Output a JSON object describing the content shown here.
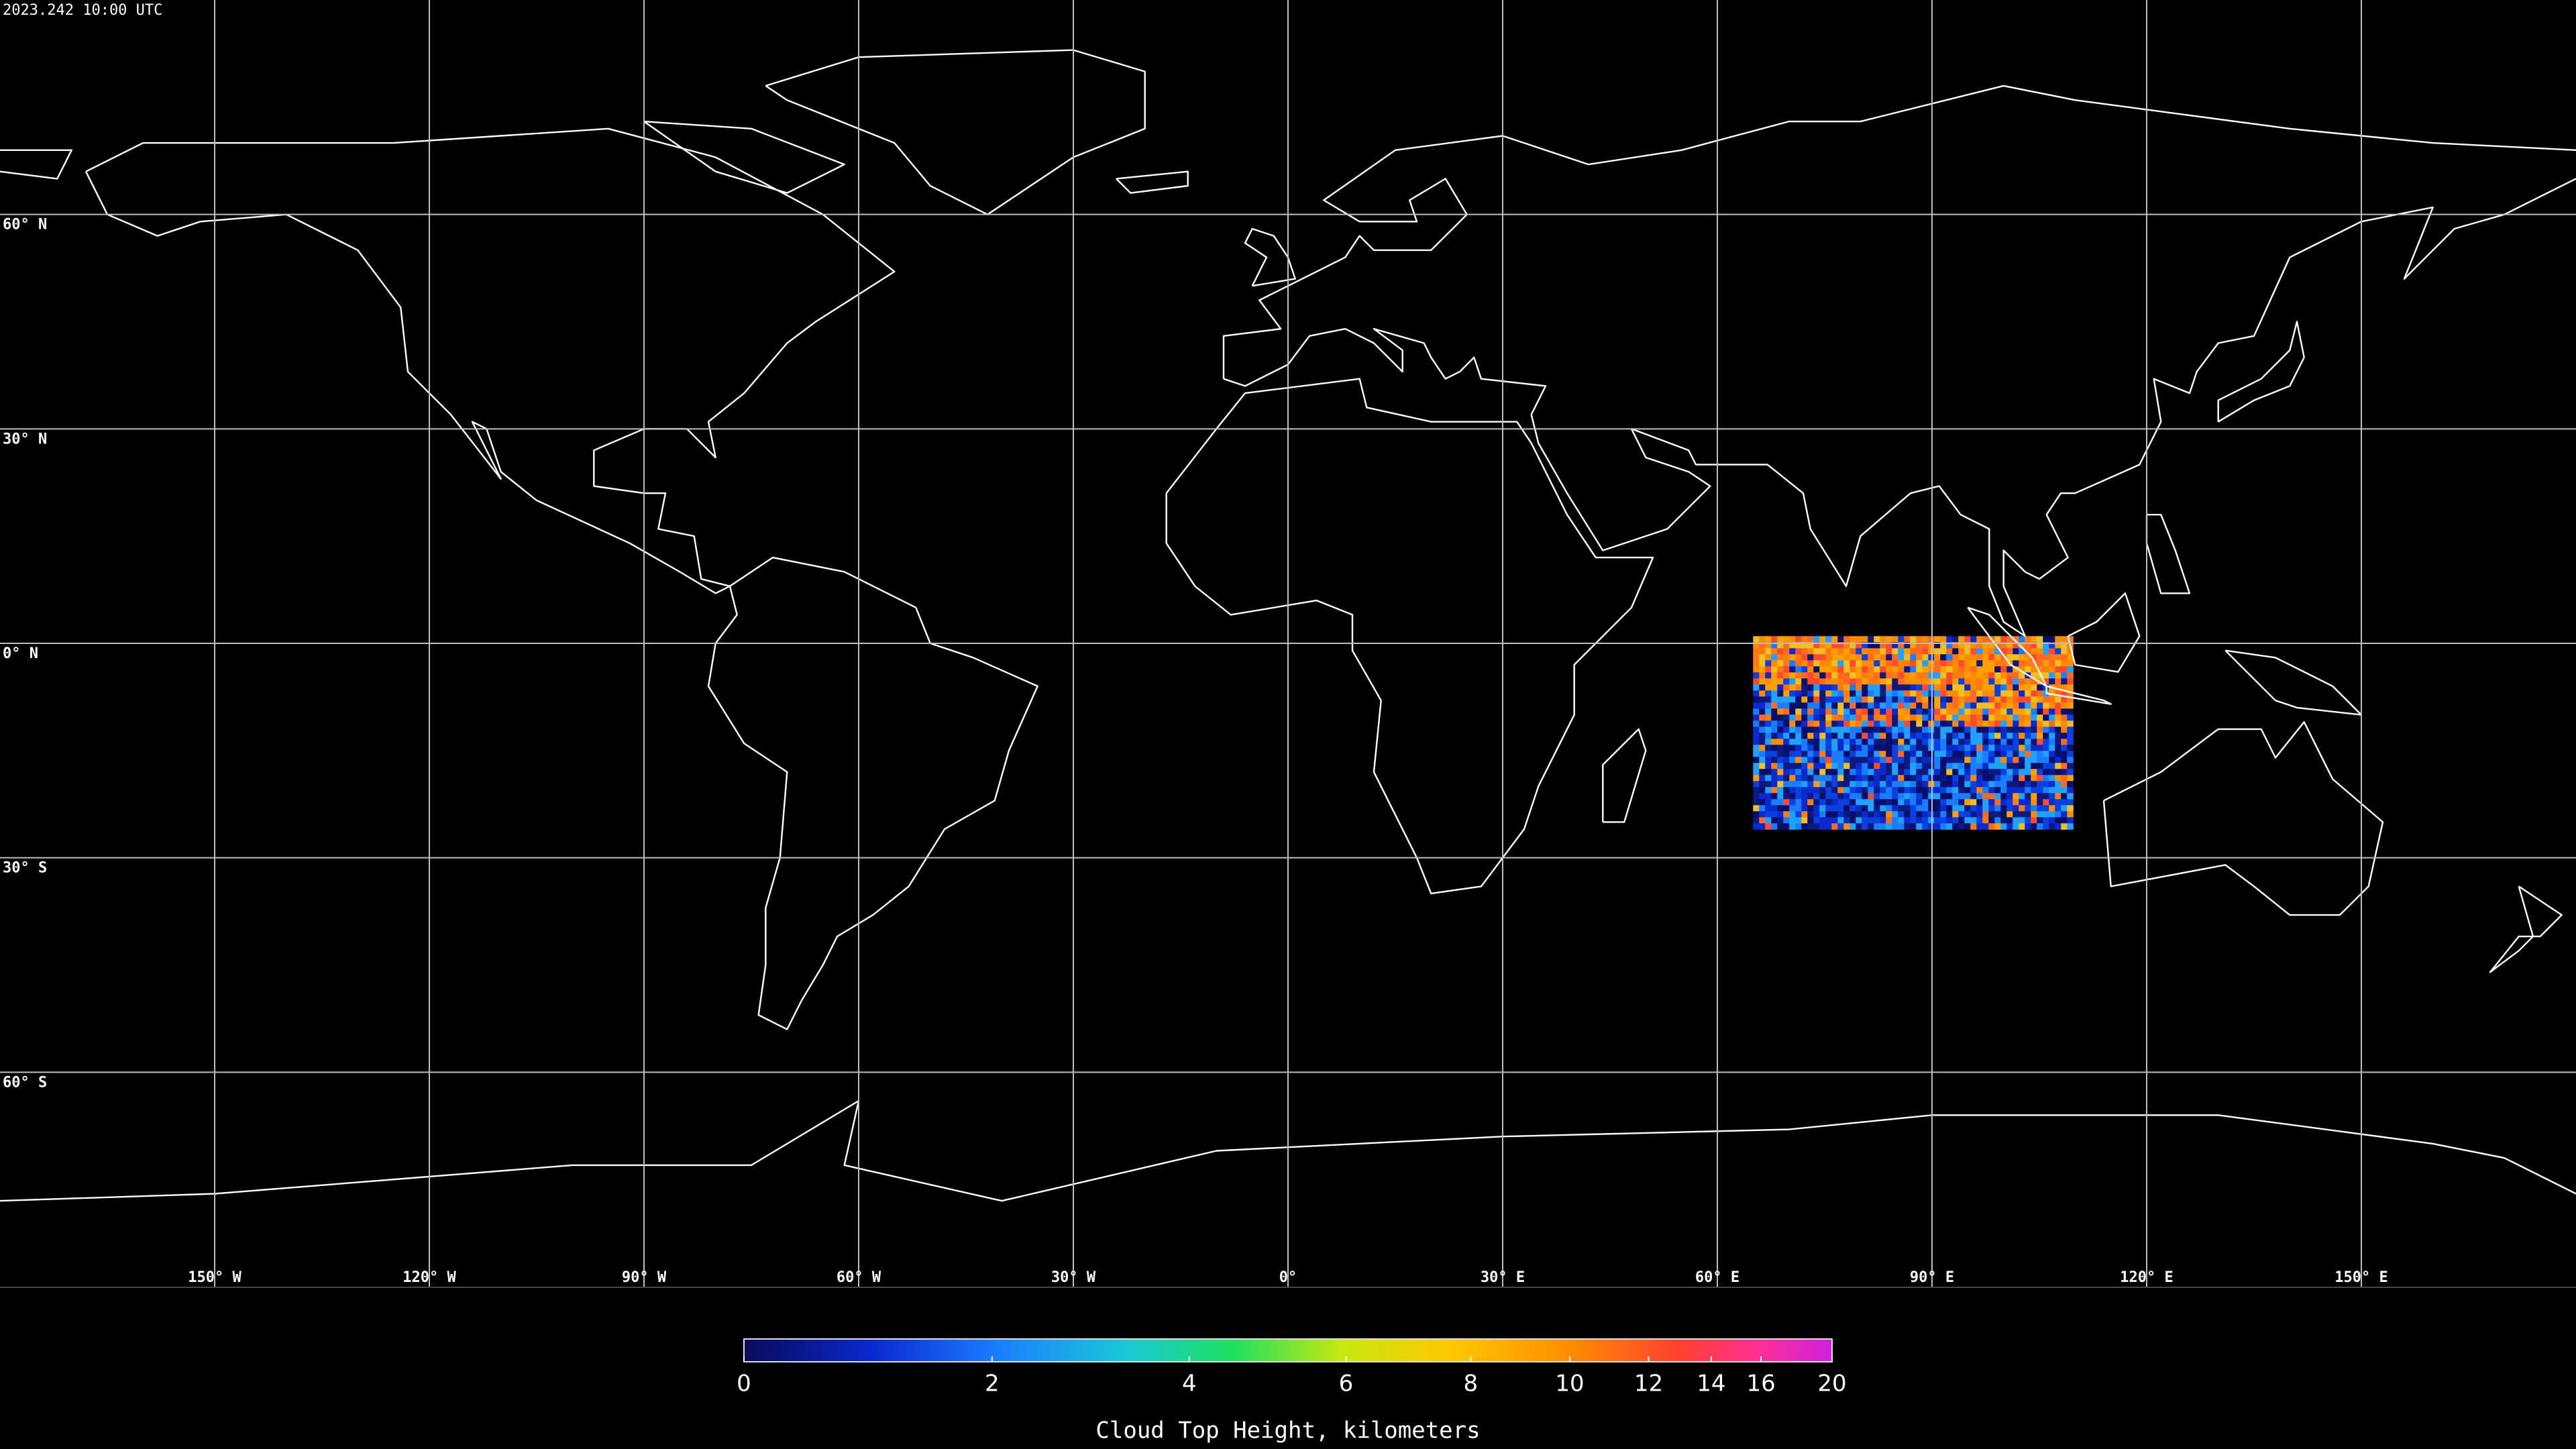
{
  "timestamp": "2023.242 10:00 UTC",
  "map": {
    "lat_lines": [
      {
        "value": 60,
        "label": "60° N"
      },
      {
        "value": 30,
        "label": "30° N"
      },
      {
        "value": 0,
        "label": "0° N"
      },
      {
        "value": -30,
        "label": "30° S"
      },
      {
        "value": -60,
        "label": "60° S"
      }
    ],
    "lon_lines": [
      {
        "value": -150,
        "label": "150° W"
      },
      {
        "value": -120,
        "label": "120° W"
      },
      {
        "value": -90,
        "label": "90° W"
      },
      {
        "value": -60,
        "label": "60° W"
      },
      {
        "value": -30,
        "label": "30° W"
      },
      {
        "value": 0,
        "label": "0°"
      },
      {
        "value": 30,
        "label": "30° E"
      },
      {
        "value": 60,
        "label": "60° E"
      },
      {
        "value": 90,
        "label": "90° E"
      },
      {
        "value": 120,
        "label": "120° E"
      },
      {
        "value": 150,
        "label": "150° E"
      }
    ]
  },
  "colorbar": {
    "title": "Cloud Top Height, kilometers",
    "clim": [
      0,
      20
    ],
    "ticks": [
      0,
      2,
      4,
      6,
      8,
      10,
      12,
      14,
      16,
      20
    ]
  }
}
